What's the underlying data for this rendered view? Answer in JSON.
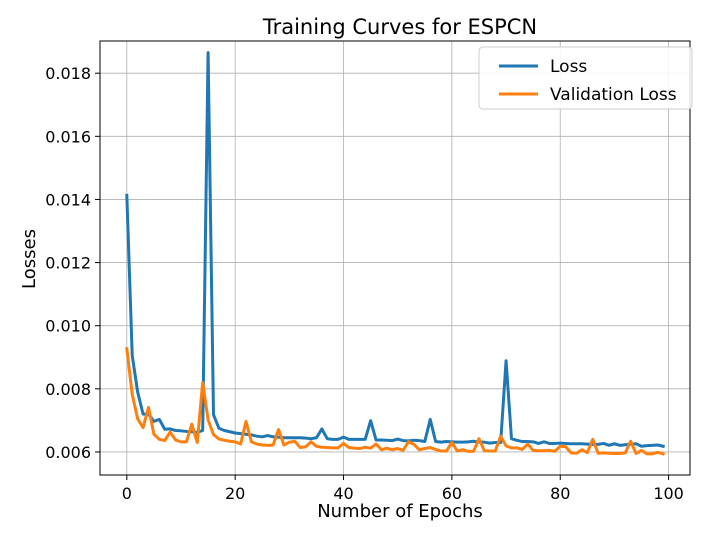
{
  "chart_data": {
    "type": "line",
    "title": "Training Curves for ESPCN",
    "xlabel": "Number of Epochs",
    "ylabel": "Losses",
    "xlim": [
      -4.95,
      103.95
    ],
    "ylim": [
      0.00527,
      0.01902
    ],
    "xticks": [
      0,
      20,
      40,
      60,
      80,
      100
    ],
    "yticks": [
      0.006,
      0.008,
      0.01,
      0.012,
      0.014,
      0.016,
      0.018
    ],
    "ytick_decimals": 3,
    "grid": true,
    "legend_position": "top-right",
    "x": [
      0,
      1,
      2,
      3,
      4,
      5,
      6,
      7,
      8,
      9,
      10,
      11,
      12,
      13,
      14,
      15,
      16,
      17,
      18,
      19,
      20,
      21,
      22,
      23,
      24,
      25,
      26,
      27,
      28,
      29,
      30,
      31,
      32,
      33,
      34,
      35,
      36,
      37,
      38,
      39,
      40,
      41,
      42,
      43,
      44,
      45,
      46,
      47,
      48,
      49,
      50,
      51,
      52,
      53,
      54,
      55,
      56,
      57,
      58,
      59,
      60,
      61,
      62,
      63,
      64,
      65,
      66,
      67,
      68,
      69,
      70,
      71,
      72,
      73,
      74,
      75,
      76,
      77,
      78,
      79,
      80,
      81,
      82,
      83,
      84,
      85,
      86,
      87,
      88,
      89,
      90,
      91,
      92,
      93,
      94,
      95,
      96,
      97,
      98,
      99
    ],
    "series": [
      {
        "name": "Loss",
        "color": "#1f77b4",
        "values": [
          0.01413,
          0.00905,
          0.0079,
          0.0072,
          0.0072,
          0.00697,
          0.00703,
          0.00672,
          0.00673,
          0.00668,
          0.00667,
          0.00665,
          0.00664,
          0.00662,
          0.00668,
          0.01865,
          0.00718,
          0.00675,
          0.00668,
          0.00664,
          0.0066,
          0.00658,
          0.00656,
          0.00654,
          0.0065,
          0.00648,
          0.00652,
          0.00648,
          0.00647,
          0.00645,
          0.00645,
          0.00645,
          0.00645,
          0.00644,
          0.00642,
          0.00645,
          0.00673,
          0.00642,
          0.0064,
          0.0064,
          0.00647,
          0.0064,
          0.0064,
          0.0064,
          0.0064,
          0.00699,
          0.00638,
          0.00638,
          0.00637,
          0.00636,
          0.00641,
          0.00636,
          0.00635,
          0.00637,
          0.00636,
          0.00633,
          0.00703,
          0.00633,
          0.00631,
          0.00633,
          0.00632,
          0.00631,
          0.00631,
          0.00632,
          0.00634,
          0.00631,
          0.00631,
          0.00628,
          0.0063,
          0.0063,
          0.00889,
          0.00642,
          0.00637,
          0.00633,
          0.00633,
          0.00632,
          0.00627,
          0.00632,
          0.00627,
          0.00627,
          0.00628,
          0.00627,
          0.00626,
          0.00626,
          0.00626,
          0.00625,
          0.00624,
          0.00624,
          0.00627,
          0.00621,
          0.00626,
          0.00621,
          0.00623,
          0.00624,
          0.00626,
          0.00618,
          0.0062,
          0.00621,
          0.00622,
          0.00618
        ]
      },
      {
        "name": "Validation Loss",
        "color": "#ff7f0e",
        "values": [
          0.00927,
          0.00782,
          0.00705,
          0.00677,
          0.00741,
          0.00656,
          0.0064,
          0.00636,
          0.00663,
          0.00638,
          0.00632,
          0.00632,
          0.00688,
          0.0063,
          0.0082,
          0.00702,
          0.00655,
          0.00641,
          0.00637,
          0.00634,
          0.00632,
          0.00625,
          0.00697,
          0.00632,
          0.00625,
          0.00622,
          0.00621,
          0.00622,
          0.00671,
          0.00622,
          0.00631,
          0.00634,
          0.00614,
          0.00616,
          0.00632,
          0.00618,
          0.00615,
          0.00614,
          0.00613,
          0.00613,
          0.00627,
          0.00614,
          0.00612,
          0.00611,
          0.00615,
          0.00612,
          0.00625,
          0.00607,
          0.00612,
          0.00607,
          0.00611,
          0.00605,
          0.00633,
          0.00624,
          0.00607,
          0.00611,
          0.00614,
          0.00608,
          0.00603,
          0.00603,
          0.0063,
          0.00603,
          0.00607,
          0.00602,
          0.00602,
          0.00642,
          0.00604,
          0.00603,
          0.00603,
          0.0065,
          0.00619,
          0.00613,
          0.00613,
          0.00608,
          0.00625,
          0.00605,
          0.00604,
          0.00604,
          0.00605,
          0.00602,
          0.00618,
          0.00617,
          0.00597,
          0.00596,
          0.00607,
          0.00598,
          0.0064,
          0.00596,
          0.00597,
          0.00596,
          0.00595,
          0.00595,
          0.00597,
          0.00634,
          0.00595,
          0.00605,
          0.00594,
          0.00594,
          0.00599,
          0.00594
        ]
      }
    ]
  }
}
